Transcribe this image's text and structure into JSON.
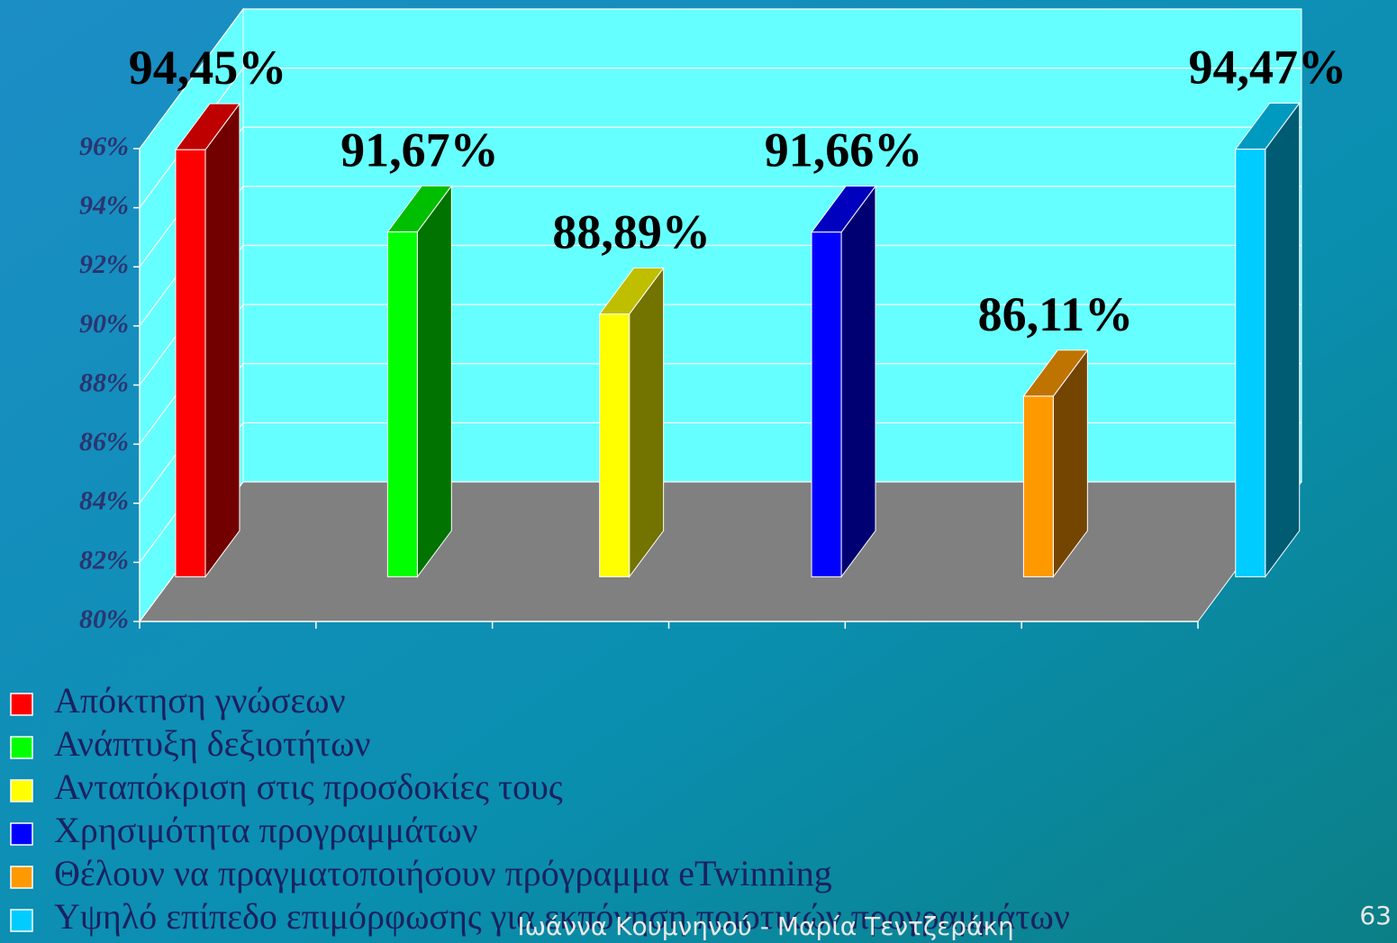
{
  "chart_data": {
    "type": "bar3d",
    "series": [
      {
        "name": "Απόκτηση γνώσεων",
        "color": "#ff0000",
        "values": [
          94.45
        ],
        "value_labels": [
          "94,45%"
        ]
      },
      {
        "name": "Ανάπτυξη δεξιοτήτων",
        "color": "#00ff00",
        "values": [
          91.67
        ],
        "value_labels": [
          "91,67%"
        ]
      },
      {
        "name": "Ανταπόκριση στις προσδοκίες τους",
        "color": "#ffff00",
        "values": [
          88.89
        ],
        "value_labels": [
          "88,89%"
        ]
      },
      {
        "name": "Χρησιμότητα προγραμμάτων",
        "color": "#0000ff",
        "values": [
          91.66
        ],
        "value_labels": [
          "91,66%"
        ]
      },
      {
        "name": "Θέλουν να πραγματοποιήσουν πρόγραμμα eTwinning",
        "color": "#ff9900",
        "values": [
          86.11
        ],
        "value_labels": [
          "86,11%"
        ]
      },
      {
        "name": "Υψηλό επίπεδο επιμόρφωσης για εκπόνηση ποιοτικών προγραμμάτων",
        "color": "#00ccff",
        "values": [
          94.47
        ],
        "value_labels": [
          "94,47%"
        ]
      }
    ],
    "ylim": [
      80,
      96
    ],
    "yticks": [
      {
        "value": 80,
        "label": "80%"
      },
      {
        "value": 82,
        "label": "82%"
      },
      {
        "value": 84,
        "label": "84%"
      },
      {
        "value": 86,
        "label": "86%"
      },
      {
        "value": 88,
        "label": "88%"
      },
      {
        "value": 90,
        "label": "90%"
      },
      {
        "value": 92,
        "label": "92%"
      },
      {
        "value": 94,
        "label": "94%"
      },
      {
        "value": 96,
        "label": "96%"
      }
    ],
    "grid": true,
    "wall_color": "#66ffff",
    "floor_color": "#808080"
  },
  "footer": {
    "authors": "Ιωάννα Κουμνηνού - Μαρία Τεντζεράκη",
    "page_number": "63"
  }
}
